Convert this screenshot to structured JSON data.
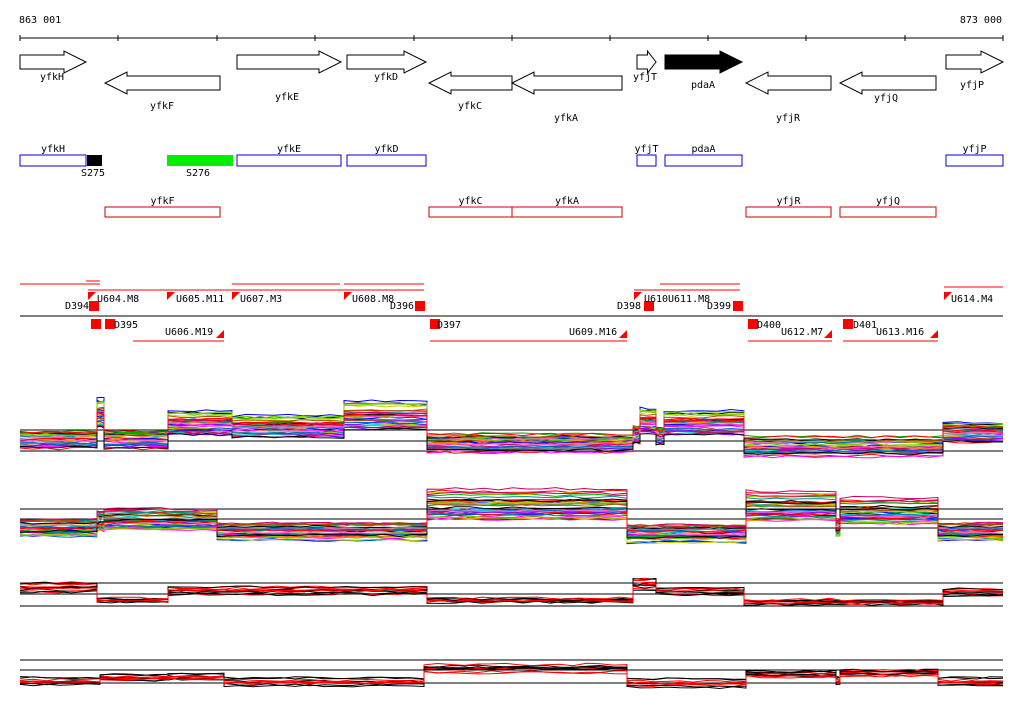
{
  "coords": {
    "start": "863 001",
    "end": "873 000"
  },
  "colors": {
    "forward_box": "#0000cc",
    "reverse_box": "#cc0000",
    "highlight_gene": "#000000",
    "s276": "#00ee00",
    "segment": "#ff0000",
    "profile_red": "#ff0000",
    "profile_black": "#000000"
  },
  "genes_arrows": [
    {
      "name": "yfkH",
      "strand": "+",
      "filled": false
    },
    {
      "name": "yfkF",
      "strand": "-",
      "filled": false
    },
    {
      "name": "yfkE",
      "strand": "+",
      "filled": false
    },
    {
      "name": "yfkD",
      "strand": "+",
      "filled": false
    },
    {
      "name": "yfkC",
      "strand": "-",
      "filled": false
    },
    {
      "name": "yfkA",
      "strand": "-",
      "filled": false
    },
    {
      "name": "yfjT",
      "strand": "+",
      "filled": false
    },
    {
      "name": "pdaA",
      "strand": "+",
      "filled": true
    },
    {
      "name": "yfjR",
      "strand": "-",
      "filled": false
    },
    {
      "name": "yfjQ",
      "strand": "-",
      "filled": false
    },
    {
      "name": "yfjP",
      "strand": "+",
      "filled": false
    }
  ],
  "boxes_forward": [
    {
      "name": "yfkH"
    },
    {
      "name": "yfkE"
    },
    {
      "name": "yfkD"
    },
    {
      "name": "yfjT"
    },
    {
      "name": "pdaA"
    },
    {
      "name": "yfjP"
    }
  ],
  "boxes_reverse": [
    {
      "name": "yfkF"
    },
    {
      "name": "yfkC"
    },
    {
      "name": "yfkA"
    },
    {
      "name": "yfjR"
    },
    {
      "name": "yfjQ"
    }
  ],
  "small_features": [
    {
      "name": "S275"
    },
    {
      "name": "S276"
    }
  ],
  "segment_labels_top": [
    {
      "label": "D394"
    },
    {
      "label": "U604.M8"
    },
    {
      "label": "U605.M11"
    },
    {
      "label": "U607.M3"
    },
    {
      "label": "U608.M8"
    },
    {
      "label": "D396"
    },
    {
      "label": "D398"
    },
    {
      "label": "U610"
    },
    {
      "label": "U611.M8"
    },
    {
      "label": "D399"
    },
    {
      "label": "U614.M4"
    }
  ],
  "segment_labels_bottom": [
    {
      "label": "D395"
    },
    {
      "label": "U606.M19"
    },
    {
      "label": "D397"
    },
    {
      "label": "U609.M16"
    },
    {
      "label": "D400"
    },
    {
      "label": "U612.M7"
    },
    {
      "label": "D401"
    },
    {
      "label": "U613.M16"
    }
  ],
  "panels": [
    {
      "name": "forward-strand-profiles",
      "style": "multicolor"
    },
    {
      "name": "reverse-strand-profiles",
      "style": "multicolor"
    },
    {
      "name": "forward-strand-summary",
      "style": "red-black"
    },
    {
      "name": "reverse-strand-summary",
      "style": "red-black"
    }
  ]
}
